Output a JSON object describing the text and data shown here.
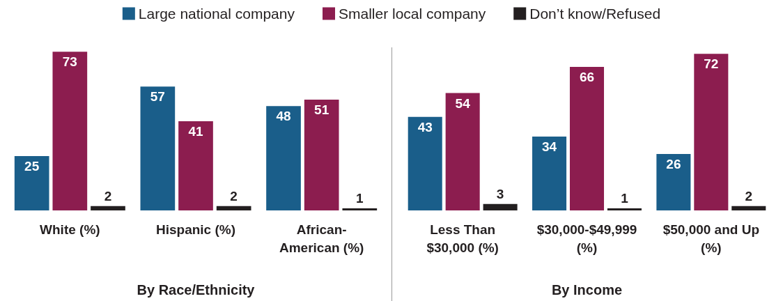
{
  "chart_data": [
    {
      "type": "bar",
      "categories": [
        "White (%)",
        "Hispanic (%)",
        "African-American (%)"
      ],
      "series": [
        {
          "name": "Large national company",
          "color": "#1a5e8a",
          "values": [
            25,
            57,
            48
          ]
        },
        {
          "name": "Smaller local company",
          "color": "#8c1d4f",
          "values": [
            73,
            41,
            51
          ]
        },
        {
          "name": "Don’t know/Refused",
          "color": "#231f20",
          "values": [
            2,
            2,
            1
          ]
        }
      ],
      "data_labels": true,
      "legend": "top",
      "xlabel": "By Race/Ethnicity"
    },
    {
      "type": "bar",
      "categories": [
        "Less Than $30,000 (%)",
        "$30,000-$49,999 (%)",
        "$50,000 and Up (%)"
      ],
      "series": [
        {
          "color": "#1a5e8a",
          "values": [
            43,
            34,
            26
          ]
        },
        {
          "color": "#8c1d4f",
          "values": [
            54,
            66,
            72
          ]
        },
        {
          "color": "#231f20",
          "values": [
            3,
            1,
            2
          ]
        }
      ],
      "data_labels": true,
      "xlabel": "By Income"
    }
  ]
}
